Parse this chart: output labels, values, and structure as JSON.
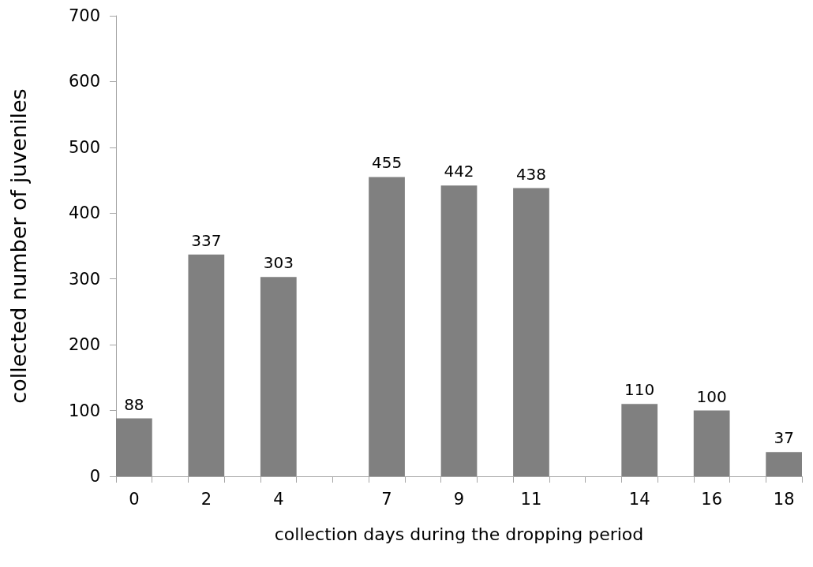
{
  "chart_data": {
    "type": "bar",
    "xlabel": "collection days during the dropping period",
    "ylabel": "collected number of juveniles",
    "categories": [
      "0",
      null,
      "2",
      null,
      "4",
      null,
      null,
      "7",
      null,
      "9",
      null,
      "11",
      null,
      null,
      "14",
      null,
      "16",
      null,
      "18"
    ],
    "values": [
      88,
      null,
      337,
      null,
      303,
      null,
      null,
      455,
      null,
      442,
      null,
      438,
      null,
      null,
      110,
      null,
      100,
      null,
      37
    ],
    "color": "#808080",
    "ylim": [
      0,
      700
    ],
    "yticks": [
      0,
      100,
      200,
      300,
      400,
      500,
      600,
      700
    ],
    "data_labels": true,
    "grid": false
  }
}
